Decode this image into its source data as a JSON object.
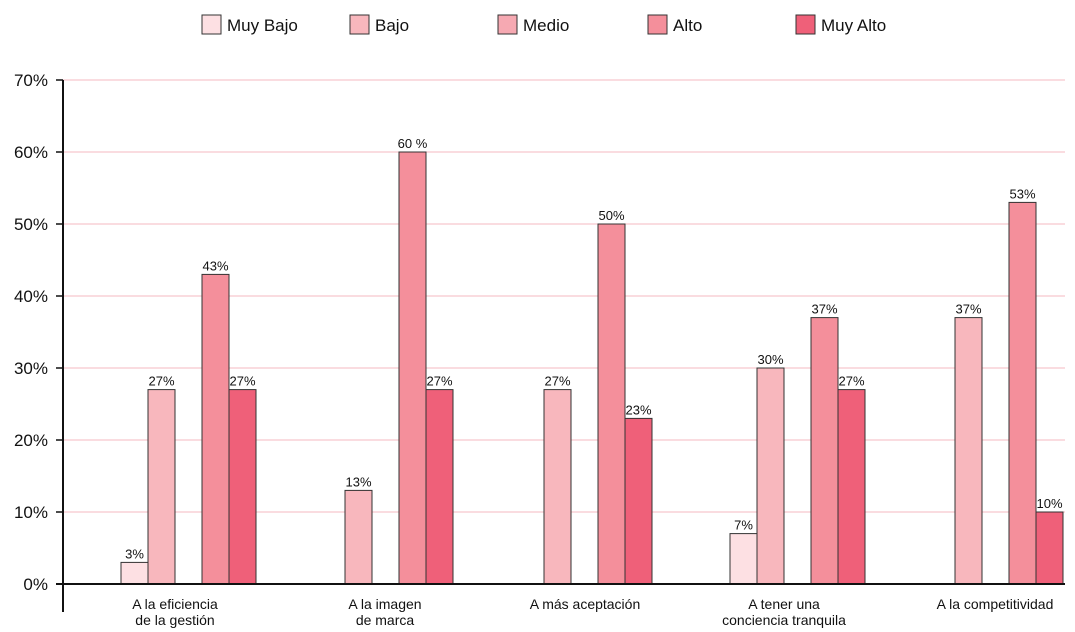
{
  "chart_data": {
    "type": "bar",
    "categories": [
      [
        "A la eficiencia",
        "de la gestión"
      ],
      [
        "A la imagen",
        "de marca"
      ],
      [
        "A más aceptación"
      ],
      [
        "A tener una",
        "conciencia tranquila"
      ],
      [
        "A la competitividad"
      ]
    ],
    "series": [
      {
        "name": "Muy Bajo",
        "color": "#fde0e3",
        "values": [
          3,
          null,
          null,
          7,
          null
        ],
        "labels": [
          "3%",
          "",
          "",
          "7%",
          ""
        ]
      },
      {
        "name": "Bajo",
        "color": "#f8b7bd",
        "values": [
          27,
          13,
          27,
          30,
          37
        ],
        "labels": [
          "27%",
          "13%",
          "27%",
          "30%",
          "37%"
        ]
      },
      {
        "name": "Medio",
        "color": "#f6a9b2",
        "values": [
          null,
          null,
          null,
          null,
          null
        ],
        "labels": [
          "",
          "",
          "",
          "",
          ""
        ]
      },
      {
        "name": "Alto",
        "color": "#f48f9b",
        "values": [
          43,
          60,
          50,
          37,
          53
        ],
        "labels": [
          "43%",
          "60 %",
          "50%",
          "37%",
          "53%"
        ]
      },
      {
        "name": "Muy Alto",
        "color": "#ef6079",
        "values": [
          27,
          27,
          23,
          27,
          10
        ],
        "labels": [
          "27%",
          "27%",
          "23%",
          "27%",
          "10%"
        ]
      }
    ],
    "y_ticks": [
      "0%",
      "10%",
      "20%",
      "30%",
      "40%",
      "50%",
      "60%",
      "70%"
    ],
    "ylim": [
      0,
      70
    ],
    "grid": true,
    "grid_color": "#f4b9c0",
    "legend_position": "top-center"
  }
}
